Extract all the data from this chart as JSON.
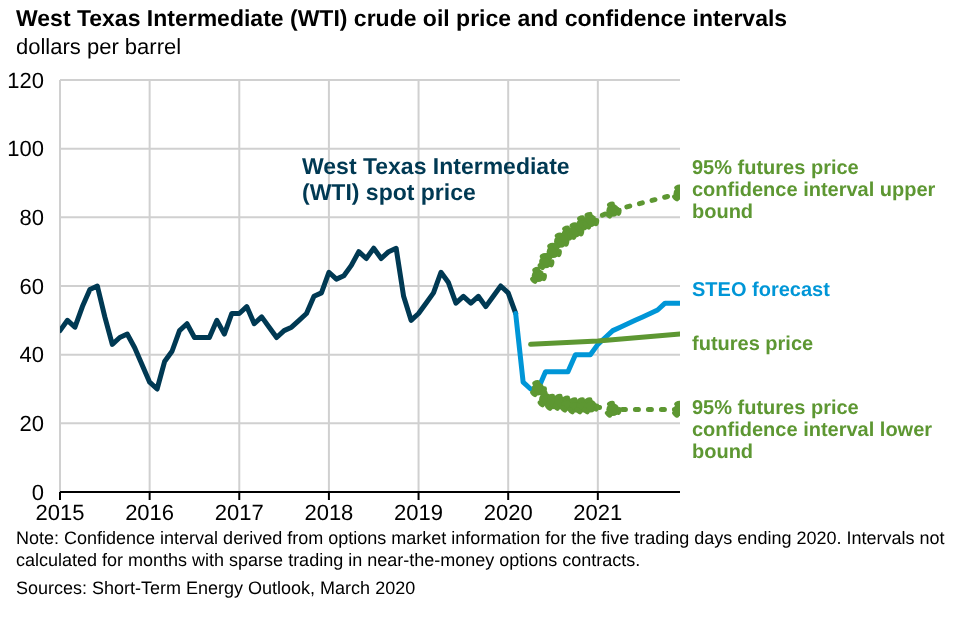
{
  "chart_data": {
    "type": "line",
    "title": "West Texas Intermediate (WTI) crude oil price and confidence intervals",
    "subtitle": "dollars per barrel",
    "annotations": [
      "Note: Confidence interval derived from options market information for the five trading days ending 2020. Intervals not calculated for months with sparse trading in near-the-money options contracts.",
      "Sources: Short-Term Energy Outlook, March 2020"
    ],
    "xlim": [
      "2015-01",
      "2021-12"
    ],
    "xticks": [
      "2015",
      "2016",
      "2017",
      "2018",
      "2019",
      "2020",
      "2021"
    ],
    "ylim": [
      0,
      120
    ],
    "yticks": [
      0,
      20,
      40,
      60,
      80,
      100,
      120
    ],
    "grid": true,
    "legend": false,
    "marker": "none",
    "line_style": "solid",
    "series": [
      {
        "name": "West Texas Intermediate (WTI) spot price",
        "color": "#003953",
        "x": [
          "2015-01",
          "2015-02",
          "2015-03",
          "2015-04",
          "2015-05",
          "2015-06",
          "2015-07",
          "2015-08",
          "2015-09",
          "2015-10",
          "2015-11",
          "2015-12",
          "2016-01",
          "2016-02",
          "2016-03",
          "2016-04",
          "2016-05",
          "2016-06",
          "2016-07",
          "2016-08",
          "2016-09",
          "2016-10",
          "2016-11",
          "2016-12",
          "2017-01",
          "2017-02",
          "2017-03",
          "2017-04",
          "2017-05",
          "2017-06",
          "2017-07",
          "2017-08",
          "2017-09",
          "2017-10",
          "2017-11",
          "2017-12",
          "2018-01",
          "2018-02",
          "2018-03",
          "2018-04",
          "2018-05",
          "2018-06",
          "2018-07",
          "2018-08",
          "2018-09",
          "2018-10",
          "2018-11",
          "2018-12",
          "2019-01",
          "2019-02",
          "2019-03",
          "2019-04",
          "2019-05",
          "2019-06",
          "2019-07",
          "2019-08",
          "2019-09",
          "2019-10",
          "2019-11",
          "2019-12",
          "2020-01",
          "2020-02"
        ],
        "values": [
          47,
          50,
          48,
          54,
          59,
          60,
          51,
          43,
          45,
          46,
          42,
          37,
          32,
          30,
          38,
          41,
          47,
          49,
          45,
          45,
          45,
          50,
          46,
          52,
          52,
          54,
          49,
          51,
          48,
          45,
          47,
          48,
          50,
          52,
          57,
          58,
          64,
          62,
          63,
          66,
          70,
          68,
          71,
          68,
          70,
          71,
          57,
          50,
          52,
          55,
          58,
          64,
          61,
          55,
          57,
          55,
          57,
          54,
          57,
          60,
          58,
          52
        ]
      },
      {
        "name": "STEO forecast",
        "color": "#0096d7",
        "x": [
          "2020-02",
          "2020-03",
          "2020-04",
          "2020-05",
          "2020-06",
          "2020-07",
          "2020-08",
          "2020-09",
          "2020-10",
          "2020-11",
          "2020-12",
          "2021-01",
          "2021-02",
          "2021-03",
          "2021-04",
          "2021-05",
          "2021-06",
          "2021-07",
          "2021-08",
          "2021-09",
          "2021-10",
          "2021-11",
          "2021-12"
        ],
        "values": [
          52,
          32,
          30,
          30,
          35,
          35,
          35,
          35,
          40,
          40,
          40,
          43,
          45,
          47,
          48,
          49,
          50,
          51,
          52,
          53,
          55,
          55,
          55
        ]
      },
      {
        "name": "futures price",
        "color": "#5d9732",
        "x": [
          "2020-04",
          "2021-01",
          "2021-12"
        ],
        "values": [
          43,
          44,
          46
        ]
      },
      {
        "name": "95% futures price confidence interval upper bound",
        "color": "#5d9732",
        "marker": "circle",
        "line_style": "dotted",
        "x": [
          "2020-05",
          "2020-06",
          "2020-07",
          "2020-08",
          "2020-09",
          "2020-10",
          "2020-11",
          "2020-12",
          "2021-03",
          "2021-12"
        ],
        "values": [
          63,
          67,
          70,
          73,
          75,
          76,
          78,
          79,
          82,
          87
        ]
      },
      {
        "name": "95% futures price confidence interval lower bound",
        "color": "#5d9732",
        "marker": "circle",
        "line_style": "dotted",
        "x": [
          "2020-05",
          "2020-06",
          "2020-07",
          "2020-08",
          "2020-09",
          "2020-10",
          "2020-11",
          "2020-12",
          "2021-03",
          "2021-12"
        ],
        "values": [
          30,
          27,
          26,
          26,
          25.5,
          25,
          25,
          25,
          24,
          24
        ]
      }
    ]
  }
}
